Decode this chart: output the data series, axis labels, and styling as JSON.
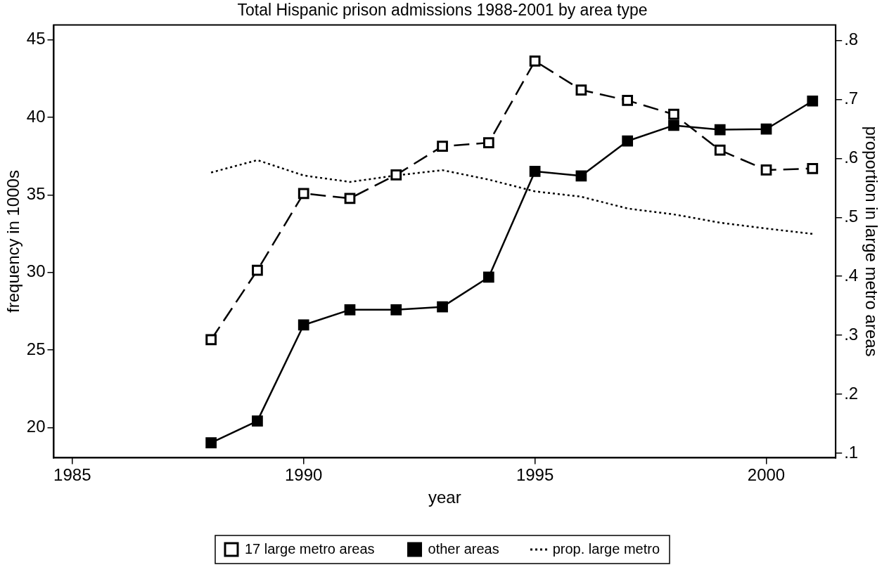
{
  "chart_data": {
    "type": "line",
    "title": "Total Hispanic prison admissions 1988-2001 by area type",
    "xlabel": "year",
    "ylabel": "frequency in 1000s",
    "y2label": "proportion in large metro areas",
    "x": [
      1988,
      1989,
      1990,
      1991,
      1992,
      1993,
      1994,
      1995,
      1996,
      1997,
      1998,
      1999,
      2000,
      2001
    ],
    "series": [
      {
        "name": "17 large metro areas",
        "color": "#000000",
        "marker": "square",
        "line_style": "dashed",
        "values": [
          25.66,
          30.14,
          35.09,
          34.77,
          36.29,
          38.13,
          38.36,
          43.63,
          41.76,
          41.09,
          40.19,
          37.88,
          36.6,
          36.7
        ]
      },
      {
        "name": "other areas",
        "color": "#000000",
        "marker": "square",
        "line_style": "solid",
        "values": [
          19.01,
          20.42,
          26.61,
          27.59,
          27.59,
          27.78,
          29.69,
          36.51,
          36.22,
          38.47,
          39.48,
          39.2,
          39.24,
          41.05
        ]
      },
      {
        "name": "prop. large metro",
        "color": "#000000",
        "marker": "none",
        "line_style": "dotted",
        "axis": "y2",
        "values": [
          0.576,
          0.597,
          0.571,
          0.56,
          0.571,
          0.58,
          0.564,
          0.544,
          0.535,
          0.515,
          0.505,
          0.491,
          0.481,
          0.472
        ]
      }
    ],
    "xlim": [
      1984.6,
      2001.5
    ],
    "xticks": [
      1985,
      1990,
      1995,
      2000
    ],
    "ylim": [
      18.05,
      45.95
    ],
    "yticks": [
      20,
      25,
      30,
      35,
      40,
      45
    ],
    "y2lim": [
      0.0925,
      0.826
    ],
    "y2ticks": [
      {
        "value": 0.1,
        "label": ".1"
      },
      {
        "value": 0.2,
        "label": ".2"
      },
      {
        "value": 0.3,
        "label": ".3"
      },
      {
        "value": 0.4,
        "label": ".4"
      },
      {
        "value": 0.5,
        "label": ".5"
      },
      {
        "value": 0.6,
        "label": ".6"
      },
      {
        "value": 0.7,
        "label": ".7"
      },
      {
        "value": 0.8,
        "label": ".8"
      }
    ],
    "grid": false,
    "legend": "bottom"
  }
}
